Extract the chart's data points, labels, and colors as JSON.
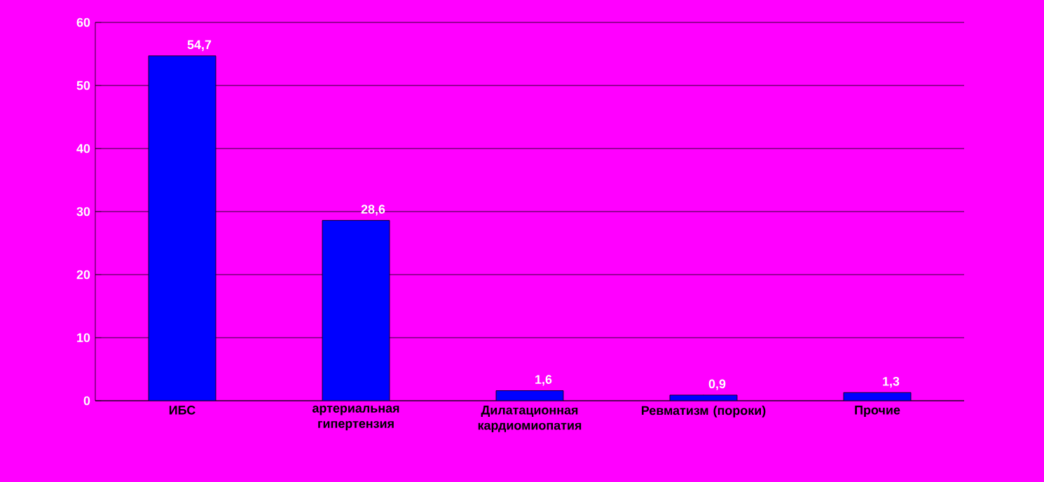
{
  "chart_data": {
    "type": "bar",
    "categories": [
      "ИБС",
      "артериальная гипертензия",
      "Дилатационная кардиомиопатия",
      "Ревматизм (пороки)",
      "Прочие"
    ],
    "values": [
      54.7,
      28.6,
      1.6,
      0.9,
      1.3
    ],
    "value_labels": [
      "54,7",
      "28,6",
      "1,6",
      "0,9",
      "1,3"
    ],
    "color": "#0000ff",
    "ylim": [
      0,
      60
    ],
    "yticks": [
      0,
      10,
      20,
      30,
      40,
      50,
      60
    ],
    "grid": "y"
  }
}
